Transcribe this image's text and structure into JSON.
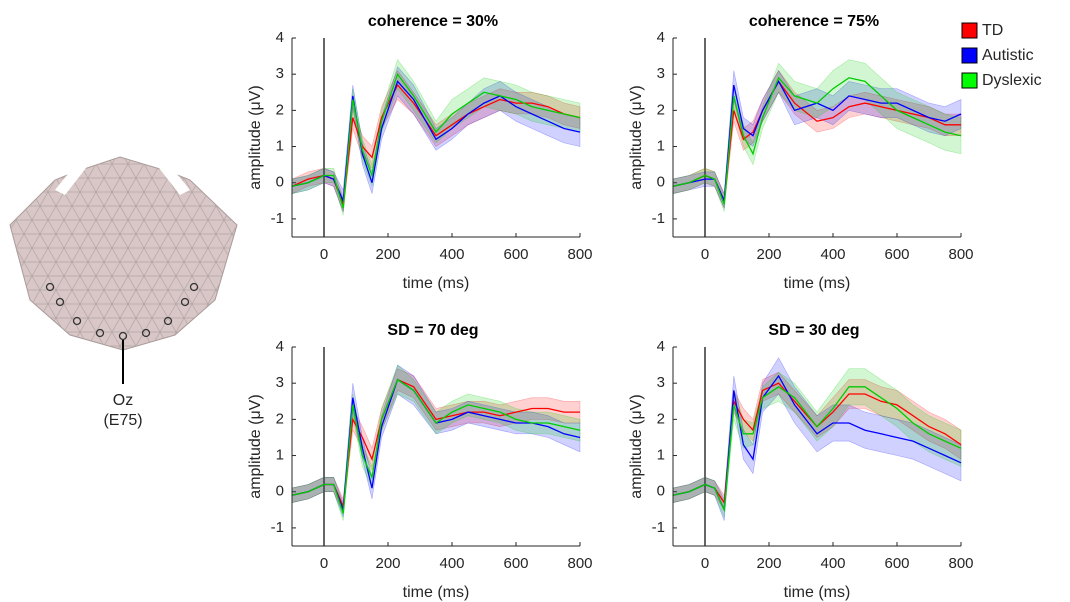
{
  "electrode": {
    "name": "Oz",
    "id": "(E75)"
  },
  "chart_data": [
    {
      "type": "line",
      "title": "coherence = 30%",
      "xlabel": "time (ms)",
      "ylabel": "amplitude (μV)",
      "x": [
        -100,
        -50,
        0,
        30,
        60,
        90,
        120,
        150,
        180,
        230,
        280,
        350,
        400,
        450,
        500,
        550,
        600,
        650,
        700,
        750,
        800
      ],
      "xlim": [
        -100,
        800
      ],
      "xticks": [
        0,
        200,
        400,
        600,
        800
      ],
      "ylim": [
        -1.5,
        4
      ],
      "yticks": [
        -1,
        0,
        1,
        2,
        3,
        4
      ],
      "series": [
        {
          "name": "TD",
          "color": "#ff0000",
          "values": [
            -0.1,
            0.1,
            0.2,
            0.1,
            -0.6,
            1.8,
            1.0,
            0.7,
            1.8,
            2.7,
            2.2,
            1.3,
            1.6,
            1.9,
            2.1,
            2.3,
            2.2,
            2.2,
            2.1,
            1.9,
            1.8
          ],
          "errors": [
            0.2,
            0.2,
            0.2,
            0.2,
            0.2,
            0.3,
            0.3,
            0.3,
            0.3,
            0.4,
            0.3,
            0.3,
            0.3,
            0.3,
            0.3,
            0.3,
            0.3,
            0.3,
            0.3,
            0.3,
            0.3
          ]
        },
        {
          "name": "Autistic",
          "color": "#0000ff",
          "values": [
            -0.1,
            0.0,
            0.2,
            0.1,
            -0.5,
            2.4,
            0.8,
            0.0,
            1.5,
            2.8,
            2.3,
            1.2,
            1.5,
            1.9,
            2.2,
            2.4,
            2.1,
            1.9,
            1.7,
            1.5,
            1.4
          ],
          "errors": [
            0.2,
            0.2,
            0.2,
            0.2,
            0.3,
            0.3,
            0.3,
            0.3,
            0.3,
            0.4,
            0.4,
            0.3,
            0.3,
            0.3,
            0.4,
            0.4,
            0.4,
            0.4,
            0.4,
            0.4,
            0.4
          ]
        },
        {
          "name": "Dyslexic",
          "color": "#00cc00",
          "values": [
            -0.1,
            0.0,
            0.2,
            0.2,
            -0.7,
            2.3,
            0.9,
            0.2,
            1.7,
            3.0,
            2.4,
            1.4,
            1.9,
            2.2,
            2.5,
            2.4,
            2.3,
            2.1,
            2.0,
            1.9,
            1.8
          ],
          "errors": [
            0.2,
            0.2,
            0.2,
            0.2,
            0.2,
            0.3,
            0.3,
            0.3,
            0.3,
            0.4,
            0.4,
            0.3,
            0.4,
            0.4,
            0.4,
            0.4,
            0.4,
            0.4,
            0.4,
            0.4,
            0.4
          ]
        }
      ]
    },
    {
      "type": "line",
      "title": "coherence = 75%",
      "xlabel": "time (ms)",
      "ylabel": "amplitude (μV)",
      "x": [
        -100,
        -50,
        0,
        30,
        60,
        90,
        120,
        150,
        180,
        230,
        280,
        350,
        400,
        450,
        500,
        550,
        600,
        650,
        700,
        750,
        800
      ],
      "xlim": [
        -100,
        800
      ],
      "xticks": [
        0,
        200,
        400,
        600,
        800
      ],
      "ylim": [
        -1.5,
        4
      ],
      "yticks": [
        -1,
        0,
        1,
        2,
        3,
        4
      ],
      "series": [
        {
          "name": "TD",
          "color": "#ff0000",
          "values": [
            -0.1,
            0.0,
            0.2,
            0.1,
            -0.5,
            2.0,
            1.2,
            1.4,
            2.0,
            2.8,
            2.2,
            1.7,
            1.8,
            2.1,
            2.2,
            2.1,
            2.0,
            1.9,
            1.8,
            1.6,
            1.6
          ],
          "errors": [
            0.2,
            0.2,
            0.2,
            0.2,
            0.2,
            0.3,
            0.3,
            0.3,
            0.3,
            0.3,
            0.3,
            0.3,
            0.3,
            0.3,
            0.3,
            0.3,
            0.3,
            0.3,
            0.3,
            0.3,
            0.3
          ]
        },
        {
          "name": "Autistic",
          "color": "#0000ff",
          "values": [
            -0.1,
            0.0,
            0.1,
            0.1,
            -0.5,
            2.7,
            1.5,
            1.3,
            2.0,
            2.8,
            2.0,
            2.2,
            2.0,
            2.4,
            2.3,
            2.2,
            2.2,
            2.0,
            1.8,
            1.7,
            1.9
          ],
          "errors": [
            0.2,
            0.2,
            0.2,
            0.2,
            0.2,
            0.4,
            0.3,
            0.3,
            0.3,
            0.3,
            0.4,
            0.4,
            0.4,
            0.4,
            0.4,
            0.4,
            0.4,
            0.4,
            0.4,
            0.4,
            0.4
          ]
        },
        {
          "name": "Dyslexic",
          "color": "#00cc00",
          "values": [
            -0.1,
            0.0,
            0.2,
            0.1,
            -0.6,
            2.4,
            1.3,
            0.8,
            1.8,
            2.9,
            2.4,
            2.2,
            2.6,
            2.9,
            2.8,
            2.4,
            2.0,
            1.8,
            1.6,
            1.4,
            1.3
          ],
          "errors": [
            0.2,
            0.2,
            0.2,
            0.2,
            0.2,
            0.3,
            0.3,
            0.3,
            0.3,
            0.4,
            0.4,
            0.4,
            0.5,
            0.5,
            0.5,
            0.5,
            0.5,
            0.5,
            0.5,
            0.5,
            0.5
          ]
        }
      ]
    },
    {
      "type": "line",
      "title": "SD = 70 deg",
      "xlabel": "time (ms)",
      "ylabel": "amplitude (μV)",
      "x": [
        -100,
        -50,
        0,
        30,
        60,
        90,
        120,
        150,
        180,
        230,
        280,
        350,
        400,
        450,
        500,
        550,
        600,
        650,
        700,
        750,
        800
      ],
      "xlim": [
        -100,
        800
      ],
      "xticks": [
        0,
        200,
        400,
        600,
        800
      ],
      "ylim": [
        -1.5,
        4
      ],
      "yticks": [
        -1,
        0,
        1,
        2,
        3,
        4
      ],
      "series": [
        {
          "name": "TD",
          "color": "#ff0000",
          "values": [
            -0.1,
            0.0,
            0.2,
            0.2,
            -0.4,
            2.0,
            1.5,
            0.9,
            2.0,
            3.1,
            2.9,
            2.0,
            2.1,
            2.2,
            2.2,
            2.1,
            2.2,
            2.3,
            2.3,
            2.2,
            2.2
          ],
          "errors": [
            0.2,
            0.2,
            0.2,
            0.2,
            0.2,
            0.3,
            0.3,
            0.3,
            0.3,
            0.3,
            0.3,
            0.3,
            0.3,
            0.3,
            0.3,
            0.3,
            0.3,
            0.3,
            0.3,
            0.3,
            0.3
          ]
        },
        {
          "name": "Autistic",
          "color": "#0000ff",
          "values": [
            -0.1,
            0.0,
            0.2,
            0.2,
            -0.5,
            2.6,
            1.2,
            0.1,
            1.8,
            3.1,
            2.8,
            1.9,
            2.0,
            2.2,
            2.1,
            2.0,
            1.9,
            1.9,
            1.8,
            1.6,
            1.5
          ],
          "errors": [
            0.2,
            0.2,
            0.2,
            0.2,
            0.2,
            0.4,
            0.3,
            0.3,
            0.3,
            0.4,
            0.4,
            0.3,
            0.3,
            0.3,
            0.3,
            0.3,
            0.3,
            0.3,
            0.3,
            0.3,
            0.4
          ]
        },
        {
          "name": "Dyslexic",
          "color": "#00cc00",
          "values": [
            -0.1,
            0.0,
            0.2,
            0.2,
            -0.6,
            2.4,
            1.0,
            0.4,
            2.0,
            3.1,
            2.8,
            1.9,
            2.2,
            2.4,
            2.3,
            2.2,
            2.0,
            1.9,
            1.9,
            1.8,
            1.7
          ],
          "errors": [
            0.2,
            0.2,
            0.2,
            0.2,
            0.2,
            0.3,
            0.3,
            0.3,
            0.3,
            0.4,
            0.3,
            0.3,
            0.3,
            0.3,
            0.3,
            0.3,
            0.3,
            0.3,
            0.3,
            0.3,
            0.3
          ]
        }
      ]
    },
    {
      "type": "line",
      "title": "SD = 30 deg",
      "xlabel": "time (ms)",
      "ylabel": "amplitude (μV)",
      "x": [
        -100,
        -50,
        0,
        30,
        60,
        90,
        120,
        150,
        180,
        230,
        280,
        350,
        400,
        450,
        500,
        550,
        600,
        650,
        700,
        750,
        800
      ],
      "xlim": [
        -100,
        800
      ],
      "xticks": [
        0,
        200,
        400,
        600,
        800
      ],
      "ylim": [
        -1.5,
        4
      ],
      "yticks": [
        -1,
        0,
        1,
        2,
        3,
        4
      ],
      "series": [
        {
          "name": "TD",
          "color": "#ff0000",
          "values": [
            -0.1,
            0.0,
            0.2,
            0.1,
            -0.3,
            2.5,
            2.0,
            1.7,
            2.8,
            3.0,
            2.5,
            1.8,
            2.2,
            2.7,
            2.7,
            2.5,
            2.4,
            2.1,
            1.8,
            1.6,
            1.3
          ],
          "errors": [
            0.2,
            0.2,
            0.2,
            0.2,
            0.2,
            0.3,
            0.3,
            0.3,
            0.3,
            0.3,
            0.3,
            0.3,
            0.4,
            0.4,
            0.4,
            0.4,
            0.4,
            0.4,
            0.4,
            0.4,
            0.4
          ]
        },
        {
          "name": "Autistic",
          "color": "#0000ff",
          "values": [
            -0.1,
            0.0,
            0.2,
            0.1,
            -0.5,
            2.8,
            1.3,
            0.9,
            2.6,
            3.2,
            2.4,
            1.6,
            1.9,
            1.9,
            1.7,
            1.6,
            1.5,
            1.4,
            1.2,
            1.0,
            0.8
          ],
          "errors": [
            0.2,
            0.2,
            0.2,
            0.2,
            0.3,
            0.4,
            0.4,
            0.4,
            0.4,
            0.5,
            0.5,
            0.5,
            0.5,
            0.5,
            0.5,
            0.5,
            0.5,
            0.5,
            0.5,
            0.5,
            0.5
          ]
        },
        {
          "name": "Dyslexic",
          "color": "#00cc00",
          "values": [
            -0.1,
            0.0,
            0.2,
            0.1,
            -0.5,
            2.4,
            1.6,
            1.6,
            2.6,
            2.9,
            2.6,
            1.8,
            2.3,
            2.9,
            2.9,
            2.6,
            2.3,
            1.9,
            1.6,
            1.4,
            1.2
          ],
          "errors": [
            0.2,
            0.2,
            0.2,
            0.2,
            0.2,
            0.4,
            0.4,
            0.3,
            0.3,
            0.4,
            0.4,
            0.4,
            0.5,
            0.5,
            0.5,
            0.5,
            0.5,
            0.5,
            0.5,
            0.5,
            0.5
          ]
        }
      ]
    }
  ]
}
